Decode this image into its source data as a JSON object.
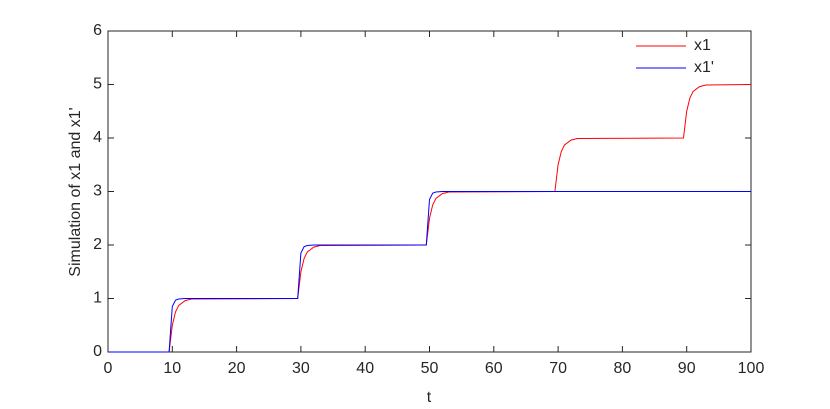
{
  "chart_data": {
    "type": "line",
    "xlabel": "t",
    "ylabel": "Simulation of x1 and x1'",
    "x": [
      0,
      9.5,
      10,
      10.5,
      11,
      12,
      13,
      29.5,
      30,
      30.5,
      31,
      32,
      33,
      49.5,
      50,
      50.5,
      51,
      52,
      53,
      69.5,
      70,
      70.5,
      71,
      72,
      73,
      89.5,
      90,
      90.5,
      91,
      92,
      93,
      100
    ],
    "series": [
      {
        "name": "x1",
        "color": "#ff0000",
        "values": [
          0,
          0,
          0.5,
          0.75,
          0.87,
          0.96,
          0.99,
          1,
          1.5,
          1.75,
          1.87,
          1.96,
          1.99,
          2,
          2.5,
          2.75,
          2.87,
          2.96,
          2.99,
          3,
          3.5,
          3.75,
          3.87,
          3.96,
          3.99,
          4,
          4.5,
          4.75,
          4.87,
          4.96,
          4.99,
          5
        ]
      },
      {
        "name": "x1'",
        "color": "#0000ff",
        "values": [
          0,
          0,
          0.85,
          0.97,
          0.99,
          1,
          1,
          1,
          1.85,
          1.97,
          1.99,
          2,
          2,
          2,
          2.85,
          2.97,
          2.99,
          3,
          3,
          3,
          3,
          3,
          3,
          3,
          3,
          3,
          3,
          3,
          3,
          3,
          3,
          3
        ]
      }
    ],
    "xlim": [
      0,
      100
    ],
    "xticks": [
      0,
      10,
      20,
      30,
      40,
      50,
      60,
      70,
      80,
      90,
      100
    ],
    "ylim": [
      0,
      6
    ],
    "yticks": [
      0,
      1,
      2,
      3,
      4,
      5,
      6
    ],
    "legend": "northeast"
  }
}
